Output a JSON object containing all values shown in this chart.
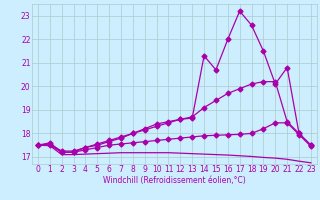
{
  "title": "",
  "xlabel": "Windchill (Refroidissement éolien,°C)",
  "ylabel": "",
  "bg_color": "#cceeff",
  "grid_color": "#aacccc",
  "line_color": "#aa00aa",
  "xlim": [
    -0.5,
    23.5
  ],
  "ylim": [
    16.7,
    23.5
  ],
  "xticks": [
    0,
    1,
    2,
    3,
    4,
    5,
    6,
    7,
    8,
    9,
    10,
    11,
    12,
    13,
    14,
    15,
    16,
    17,
    18,
    19,
    20,
    21,
    22,
    23
  ],
  "yticks": [
    17,
    18,
    19,
    20,
    21,
    22,
    23
  ],
  "series": [
    {
      "x": [
        0,
        1,
        2,
        3,
        4,
        5,
        6,
        7,
        8,
        9,
        10,
        11,
        12,
        13,
        14,
        15,
        16,
        17,
        18,
        19,
        20,
        21,
        22,
        23
      ],
      "y": [
        17.5,
        17.6,
        17.2,
        17.2,
        17.4,
        17.5,
        17.65,
        17.8,
        18.0,
        18.2,
        18.4,
        18.5,
        18.6,
        18.65,
        21.3,
        20.7,
        22.0,
        23.2,
        22.6,
        21.5,
        20.1,
        20.8,
        18.0,
        17.5
      ],
      "marker": "D",
      "markersize": 2.5,
      "linewidth": 0.9
    },
    {
      "x": [
        0,
        1,
        2,
        3,
        4,
        5,
        6,
        7,
        8,
        9,
        10,
        11,
        12,
        13,
        14,
        15,
        16,
        17,
        18,
        19,
        20,
        21,
        22,
        23
      ],
      "y": [
        17.5,
        17.55,
        17.25,
        17.25,
        17.4,
        17.55,
        17.7,
        17.85,
        18.0,
        18.15,
        18.3,
        18.45,
        18.6,
        18.7,
        19.1,
        19.4,
        19.7,
        19.9,
        20.1,
        20.2,
        20.2,
        18.5,
        18.0,
        17.5
      ],
      "marker": "D",
      "markersize": 2.5,
      "linewidth": 0.9
    },
    {
      "x": [
        0,
        1,
        2,
        3,
        4,
        5,
        6,
        7,
        8,
        9,
        10,
        11,
        12,
        13,
        14,
        15,
        16,
        17,
        18,
        19,
        20,
        21,
        22,
        23
      ],
      "y": [
        17.5,
        17.5,
        17.2,
        17.2,
        17.3,
        17.4,
        17.5,
        17.55,
        17.6,
        17.65,
        17.7,
        17.75,
        17.8,
        17.85,
        17.9,
        17.92,
        17.94,
        17.96,
        18.0,
        18.2,
        18.45,
        18.45,
        17.95,
        17.45
      ],
      "marker": "D",
      "markersize": 2.5,
      "linewidth": 0.9
    },
    {
      "x": [
        0,
        1,
        2,
        3,
        4,
        5,
        6,
        7,
        8,
        9,
        10,
        11,
        12,
        13,
        14,
        15,
        16,
        17,
        18,
        19,
        20,
        21,
        22,
        23
      ],
      "y": [
        17.5,
        17.48,
        17.1,
        17.1,
        17.12,
        17.14,
        17.16,
        17.18,
        17.18,
        17.18,
        17.18,
        17.18,
        17.16,
        17.14,
        17.12,
        17.1,
        17.08,
        17.05,
        17.02,
        16.98,
        16.95,
        16.9,
        16.82,
        16.75
      ],
      "marker": null,
      "markersize": 0,
      "linewidth": 0.9
    }
  ],
  "tick_fontsize": 5.5,
  "xlabel_fontsize": 5.5
}
